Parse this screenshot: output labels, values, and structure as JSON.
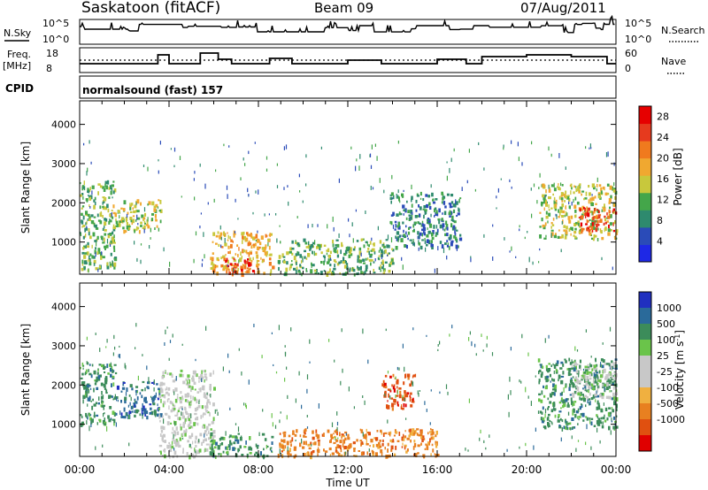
{
  "header": {
    "station": "Saskatoon (fitACF)",
    "beam": "Beam 09",
    "date": "07/Aug/2011"
  },
  "strips": {
    "nsky_label": "N.Sky",
    "nsky_ticks": [
      "10^5",
      "10^0"
    ],
    "nsearch_label": "N.Search",
    "nsearch_ticks": [
      "10^5",
      "10^0"
    ],
    "freq_label": "Freq.",
    "freq_unit": "[MHz]",
    "freq_ticks": [
      "18",
      "8"
    ],
    "nave_label": "Nave",
    "nave_ticks": [
      "60",
      "0"
    ],
    "cpid_label": "CPID",
    "cpid_text": "normalsound (fast) 157"
  },
  "colors": {
    "power_scale": [
      "#1e28e6",
      "#2a4bb8",
      "#2e8a6e",
      "#44a64a",
      "#c8c83c",
      "#f0a830",
      "#f07a1e",
      "#e63a1e",
      "#e60000"
    ],
    "velocity_scale": [
      "#2030c0",
      "#2a6a9a",
      "#3c8c5a",
      "#6ac44a",
      "#c8c8c8",
      "#c8c8c8",
      "#f0b040",
      "#e88020",
      "#e05010",
      "#e00000"
    ]
  },
  "chart_data": [
    {
      "type": "heatmap",
      "title": "Power",
      "xlabel": "Time UT",
      "ylabel": "Slant Range [km]",
      "xlim": [
        "00:00",
        "24:00"
      ],
      "ylim": [
        180,
        4600
      ],
      "x_ticks": [
        "00:00",
        "04:00",
        "08:00",
        "12:00",
        "16:00",
        "20:00",
        "00:00"
      ],
      "y_ticks": [
        1000,
        2000,
        3000,
        4000
      ],
      "colorbar": {
        "label": "Power [dB]",
        "ticks": [
          4,
          8,
          12,
          16,
          20,
          24,
          28
        ],
        "range": [
          0,
          30
        ]
      },
      "echo_regions": [
        {
          "t_start": 0.0,
          "t_end": 1.6,
          "r_min": 300,
          "r_max": 2600,
          "level": 12
        },
        {
          "t_start": 1.4,
          "t_end": 3.6,
          "r_min": 1300,
          "r_max": 2100,
          "level": 16
        },
        {
          "t_start": 5.8,
          "t_end": 8.6,
          "r_min": 200,
          "r_max": 1300,
          "level": 20
        },
        {
          "t_start": 6.5,
          "t_end": 8.0,
          "r_min": 200,
          "r_max": 600,
          "level": 28
        },
        {
          "t_start": 8.8,
          "t_end": 14.0,
          "r_min": 200,
          "r_max": 1100,
          "level": 12
        },
        {
          "t_start": 13.8,
          "t_end": 17.0,
          "r_min": 900,
          "r_max": 2300,
          "level": 8
        },
        {
          "t_start": 20.5,
          "t_end": 24.0,
          "r_min": 1100,
          "r_max": 2500,
          "level": 16
        },
        {
          "t_start": 22.3,
          "t_end": 24.0,
          "r_min": 1300,
          "r_max": 1900,
          "level": 28
        }
      ]
    },
    {
      "type": "heatmap",
      "title": "Velocity",
      "xlabel": "Time UT",
      "ylabel": "Slant Range [km]",
      "xlim": [
        "00:00",
        "24:00"
      ],
      "ylim": [
        180,
        4600
      ],
      "x_ticks": [
        "00:00",
        "04:00",
        "08:00",
        "12:00",
        "16:00",
        "20:00",
        "00:00"
      ],
      "y_ticks": [
        1000,
        2000,
        3000,
        4000
      ],
      "colorbar": {
        "label": "Velocity [m s^-1]",
        "ticks": [
          "1000",
          "500",
          "100",
          "25",
          "-25",
          "-100",
          "-500",
          "-1000"
        ]
      },
      "echo_regions": [
        {
          "t_start": 0.0,
          "t_end": 1.6,
          "r_min": 1000,
          "r_max": 2600,
          "velocity": 100
        },
        {
          "t_start": 1.6,
          "t_end": 3.6,
          "r_min": 1200,
          "r_max": 2100,
          "velocity": 500
        },
        {
          "t_start": 3.5,
          "t_end": 6.0,
          "r_min": 200,
          "r_max": 2400,
          "velocity": 0
        },
        {
          "t_start": 5.8,
          "t_end": 8.6,
          "r_min": 200,
          "r_max": 800,
          "velocity": 100
        },
        {
          "t_start": 8.8,
          "t_end": 16.0,
          "r_min": 200,
          "r_max": 900,
          "velocity": -100
        },
        {
          "t_start": 13.5,
          "t_end": 15.0,
          "r_min": 1400,
          "r_max": 2300,
          "velocity": -500
        },
        {
          "t_start": 20.5,
          "t_end": 24.0,
          "r_min": 900,
          "r_max": 2700,
          "velocity": 100
        },
        {
          "t_start": 22.0,
          "t_end": 24.0,
          "r_min": 1700,
          "r_max": 2600,
          "velocity": 0
        }
      ]
    }
  ]
}
